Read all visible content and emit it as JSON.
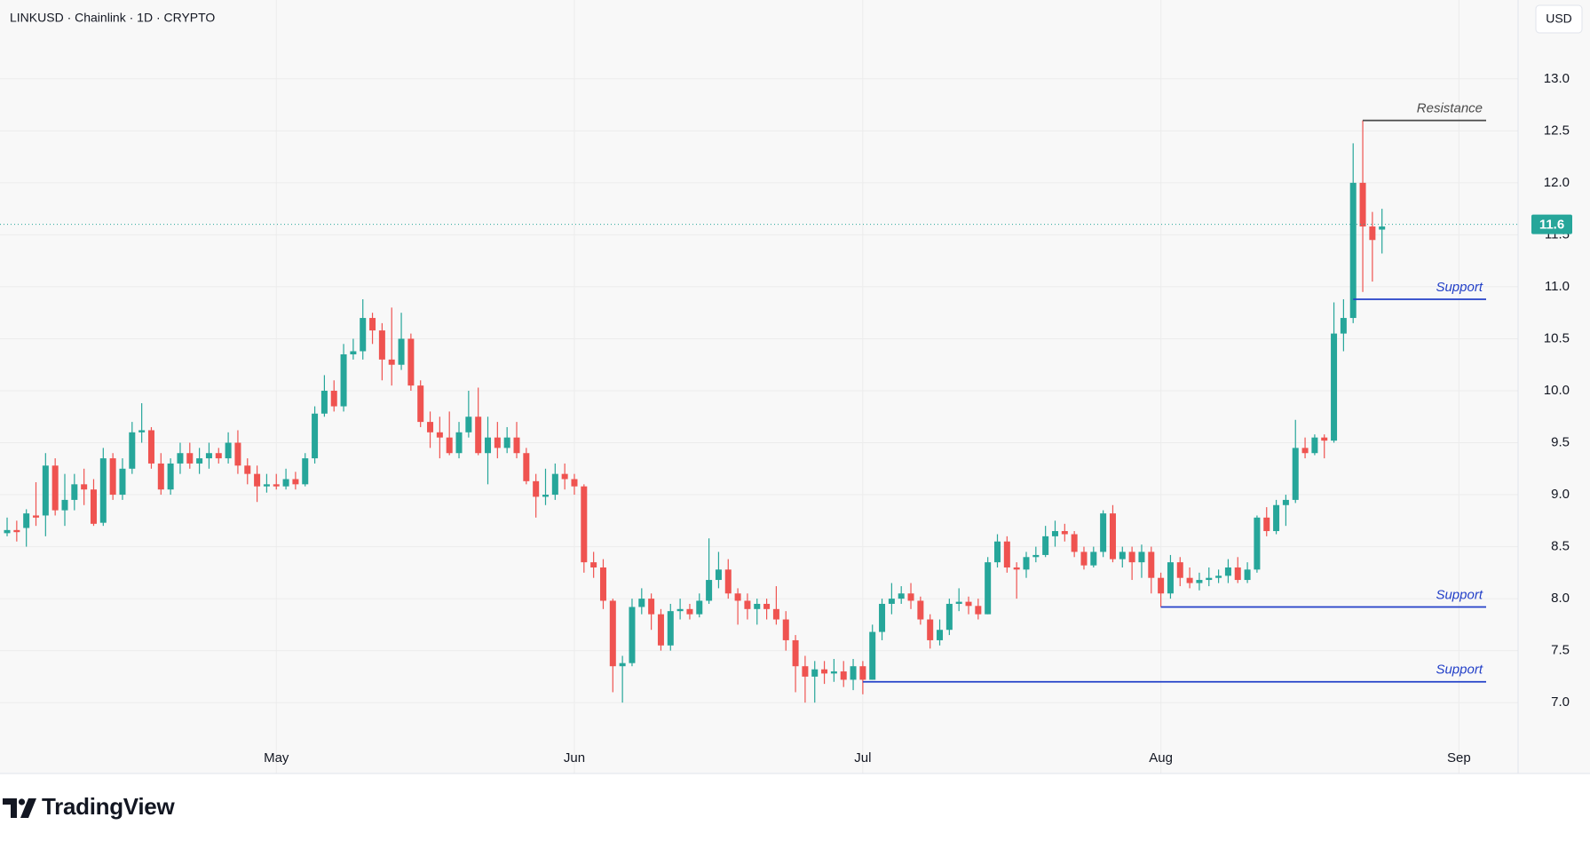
{
  "chart_data": {
    "type": "candlestick",
    "title": "LINKUSD · Chainlink · 1D · CRYPTO",
    "currency": "USD",
    "brand": "TradingView",
    "up_color": "#26a69a",
    "down_color": "#ef5350",
    "grid": true,
    "ylim": [
      6.6,
      13.75
    ],
    "yticks": [
      {
        "value": 7,
        "label": "7.0"
      },
      {
        "value": 7.5,
        "label": "7.5"
      },
      {
        "value": 8,
        "label": "8.0"
      },
      {
        "value": 8.5,
        "label": "8.5"
      },
      {
        "value": 9,
        "label": "9.0"
      },
      {
        "value": 9.5,
        "label": "9.5"
      },
      {
        "value": 10,
        "label": "10.0"
      },
      {
        "value": 10.5,
        "label": "10.5"
      },
      {
        "value": 11,
        "label": "11.0"
      },
      {
        "value": 11.5,
        "label": "11.5"
      },
      {
        "value": 12,
        "label": "12.0"
      },
      {
        "value": 12.5,
        "label": "12.5"
      },
      {
        "value": 13,
        "label": "13.0"
      }
    ],
    "last_price": 11.6,
    "levels": [
      {
        "label": "Resistance",
        "value": 12.6,
        "color": "#4a4a4a"
      },
      {
        "label": "Support",
        "value": 10.88,
        "color": "#2340c8"
      },
      {
        "label": "Support",
        "value": 7.92,
        "color": "#2340c8"
      },
      {
        "label": "Support",
        "value": 7.2,
        "color": "#2340c8"
      }
    ],
    "categories": [
      null,
      null,
      null,
      null,
      null,
      null,
      null,
      null,
      null,
      null,
      null,
      null,
      null,
      null,
      null,
      null,
      null,
      null,
      null,
      null,
      null,
      null,
      null,
      null,
      null,
      null,
      null,
      null,
      "May",
      null,
      null,
      null,
      null,
      null,
      null,
      null,
      null,
      null,
      null,
      null,
      null,
      null,
      null,
      null,
      null,
      null,
      null,
      null,
      null,
      null,
      null,
      null,
      null,
      null,
      null,
      null,
      null,
      null,
      null,
      "Jun",
      null,
      null,
      null,
      null,
      null,
      null,
      null,
      null,
      null,
      null,
      null,
      null,
      null,
      null,
      null,
      null,
      null,
      null,
      null,
      null,
      null,
      null,
      null,
      null,
      null,
      null,
      null,
      null,
      null,
      "Jul",
      null,
      null,
      null,
      null,
      null,
      null,
      null,
      null,
      null,
      null,
      null,
      null,
      null,
      null,
      null,
      null,
      null,
      null,
      null,
      null,
      null,
      null,
      null,
      null,
      null,
      null,
      null,
      null,
      null,
      null,
      "Aug",
      null,
      null,
      null,
      null,
      null,
      null,
      null,
      null,
      null,
      null,
      null,
      null,
      null,
      null,
      null,
      null,
      null,
      null,
      null,
      null,
      null,
      null,
      null,
      null,
      null,
      null,
      null,
      null,
      null,
      null,
      "Sep",
      null,
      null,
      null,
      null
    ],
    "open": [
      8.63,
      8.66,
      8.68,
      8.8,
      8.8,
      9.28,
      8.85,
      8.95,
      9.1,
      9.05,
      8.73,
      9.35,
      9.0,
      9.25,
      9.6,
      9.62,
      9.3,
      9.05,
      9.3,
      9.4,
      9.3,
      9.35,
      9.4,
      9.35,
      9.5,
      9.28,
      9.2,
      9.08,
      9.1,
      9.08,
      9.15,
      9.1,
      9.35,
      9.78,
      10.0,
      9.85,
      10.35,
      10.38,
      10.7,
      10.58,
      10.3,
      10.25,
      10.5,
      10.05,
      9.7,
      9.6,
      9.55,
      9.4,
      9.6,
      9.75,
      9.4,
      9.55,
      9.45,
      9.55,
      9.4,
      9.13,
      8.98,
      9.0,
      9.2,
      9.15,
      9.08,
      8.35,
      8.3,
      7.98,
      7.35,
      7.38,
      7.92,
      8.0,
      7.85,
      7.55,
      7.88,
      7.9,
      7.85,
      7.98,
      8.18,
      8.28,
      8.05,
      7.98,
      7.9,
      7.95,
      7.9,
      7.8,
      7.6,
      7.35,
      7.25,
      7.32,
      7.28,
      7.3,
      7.22,
      7.35,
      7.22,
      7.68,
      7.95,
      8.0,
      8.05,
      7.98,
      7.8,
      7.6,
      7.7,
      7.95,
      7.97,
      7.93,
      7.85,
      8.35,
      8.55,
      8.3,
      8.28,
      8.4,
      8.42,
      8.6,
      8.65,
      8.62,
      8.45,
      8.32,
      8.45,
      8.82,
      8.38,
      8.45,
      8.35,
      8.45,
      8.2,
      8.05,
      8.35,
      8.2,
      8.15,
      8.18,
      8.2,
      8.22,
      8.3,
      8.18,
      8.28,
      8.78,
      8.65,
      8.9,
      8.95,
      9.45,
      9.4,
      9.55,
      9.52,
      10.55,
      10.7,
      12.0,
      11.58,
      11.55,
      null,
      null,
      null,
      null,
      null,
      null,
      null,
      null,
      null,
      null,
      null,
      null
    ],
    "high": [
      8.78,
      8.75,
      8.86,
      9.12,
      9.4,
      9.35,
      9.2,
      9.2,
      9.25,
      9.15,
      9.45,
      9.4,
      9.35,
      9.7,
      9.88,
      9.65,
      9.4,
      9.35,
      9.5,
      9.5,
      9.45,
      9.5,
      9.45,
      9.6,
      9.62,
      9.35,
      9.28,
      9.2,
      9.2,
      9.25,
      9.22,
      9.4,
      9.85,
      10.15,
      10.1,
      10.45,
      10.5,
      10.88,
      10.75,
      10.65,
      10.8,
      10.75,
      10.55,
      10.1,
      9.8,
      9.75,
      9.8,
      9.7,
      10.0,
      10.03,
      9.75,
      9.7,
      9.65,
      9.7,
      9.45,
      9.2,
      9.25,
      9.3,
      9.3,
      9.2,
      9.1,
      8.45,
      8.38,
      8.0,
      7.45,
      8.0,
      8.1,
      8.05,
      7.9,
      7.95,
      8.0,
      7.95,
      8.05,
      8.58,
      8.45,
      8.38,
      8.1,
      8.05,
      8.0,
      8.0,
      8.12,
      7.88,
      7.65,
      7.45,
      7.4,
      7.4,
      7.42,
      7.4,
      7.42,
      7.4,
      7.75,
      8.0,
      8.15,
      8.12,
      8.15,
      8.02,
      7.85,
      7.8,
      8.0,
      8.1,
      8.02,
      8.0,
      8.4,
      8.62,
      8.6,
      8.35,
      8.45,
      8.5,
      8.7,
      8.75,
      8.72,
      8.65,
      8.5,
      8.5,
      8.85,
      8.9,
      8.5,
      8.5,
      8.52,
      8.5,
      8.25,
      8.42,
      8.4,
      8.3,
      8.25,
      8.3,
      8.28,
      8.38,
      8.4,
      8.35,
      8.8,
      8.88,
      8.95,
      9.0,
      9.72,
      9.55,
      9.58,
      9.58,
      10.85,
      10.88,
      12.38,
      12.6,
      11.72,
      11.75,
      null,
      null,
      null,
      null,
      null,
      null,
      null,
      null,
      null,
      null,
      null,
      null
    ],
    "low": [
      8.6,
      8.55,
      8.5,
      8.7,
      8.6,
      8.8,
      8.7,
      8.85,
      8.9,
      8.7,
      8.7,
      8.95,
      8.95,
      9.2,
      9.5,
      9.25,
      9.0,
      9.0,
      9.2,
      9.25,
      9.2,
      9.25,
      9.3,
      9.3,
      9.2,
      9.1,
      8.93,
      9.02,
      9.05,
      9.05,
      9.05,
      9.08,
      9.3,
      9.75,
      9.8,
      9.8,
      10.3,
      10.3,
      10.45,
      10.1,
      10.05,
      10.2,
      10.0,
      9.65,
      9.45,
      9.35,
      9.38,
      9.35,
      9.55,
      9.38,
      9.1,
      9.35,
      9.4,
      9.35,
      9.1,
      8.78,
      8.9,
      8.95,
      9.05,
      9.0,
      8.25,
      8.2,
      7.9,
      7.1,
      7.0,
      7.35,
      7.85,
      7.7,
      7.5,
      7.5,
      7.8,
      7.8,
      7.82,
      7.95,
      8.1,
      8.0,
      7.75,
      7.8,
      7.75,
      7.8,
      7.75,
      7.5,
      7.1,
      7.0,
      7.0,
      7.18,
      7.2,
      7.15,
      7.12,
      7.08,
      7.22,
      7.6,
      7.85,
      7.95,
      7.9,
      7.75,
      7.52,
      7.55,
      7.65,
      7.88,
      7.85,
      7.8,
      7.85,
      8.3,
      8.25,
      8.0,
      8.2,
      8.35,
      8.4,
      8.5,
      8.55,
      8.4,
      8.28,
      8.3,
      8.4,
      8.35,
      8.3,
      8.18,
      8.2,
      8.05,
      7.92,
      8.0,
      8.12,
      8.1,
      8.08,
      8.12,
      8.15,
      8.15,
      8.15,
      8.15,
      8.25,
      8.6,
      8.62,
      8.7,
      8.92,
      9.35,
      9.38,
      9.35,
      9.5,
      10.38,
      10.65,
      10.95,
      11.05,
      11.32,
      null,
      null,
      null,
      null,
      null,
      null,
      null,
      null,
      null,
      null,
      null,
      null
    ],
    "close": [
      8.66,
      8.64,
      8.82,
      8.78,
      9.28,
      8.85,
      8.95,
      9.1,
      9.05,
      8.72,
      9.35,
      9.0,
      9.25,
      9.6,
      9.62,
      9.3,
      9.05,
      9.3,
      9.4,
      9.3,
      9.35,
      9.4,
      9.35,
      9.5,
      9.28,
      9.2,
      9.08,
      9.1,
      9.08,
      9.15,
      9.1,
      9.35,
      9.78,
      10.0,
      9.85,
      10.35,
      10.38,
      10.7,
      10.58,
      10.3,
      10.25,
      10.5,
      10.05,
      9.7,
      9.6,
      9.55,
      9.4,
      9.6,
      9.75,
      9.4,
      9.55,
      9.45,
      9.55,
      9.4,
      9.13,
      8.98,
      9.0,
      9.2,
      9.15,
      9.08,
      8.35,
      8.3,
      7.98,
      7.35,
      7.38,
      7.92,
      8.0,
      7.85,
      7.55,
      7.88,
      7.9,
      7.85,
      7.98,
      8.18,
      8.28,
      8.05,
      7.98,
      7.9,
      7.95,
      7.9,
      7.8,
      7.6,
      7.35,
      7.25,
      7.32,
      7.28,
      7.3,
      7.22,
      7.35,
      7.22,
      7.68,
      7.95,
      8.0,
      8.05,
      7.98,
      7.8,
      7.6,
      7.7,
      7.95,
      7.97,
      7.93,
      7.85,
      8.35,
      8.55,
      8.3,
      8.28,
      8.4,
      8.42,
      8.6,
      8.65,
      8.62,
      8.45,
      8.32,
      8.45,
      8.82,
      8.38,
      8.45,
      8.35,
      8.45,
      8.2,
      8.05,
      8.35,
      8.2,
      8.15,
      8.18,
      8.2,
      8.22,
      8.3,
      8.18,
      8.28,
      8.78,
      8.65,
      8.9,
      8.95,
      9.45,
      9.4,
      9.55,
      9.52,
      10.55,
      10.7,
      12.0,
      11.58,
      11.45,
      11.58,
      null,
      null,
      null,
      null,
      null,
      null,
      null,
      null,
      null,
      null,
      null,
      null
    ]
  }
}
